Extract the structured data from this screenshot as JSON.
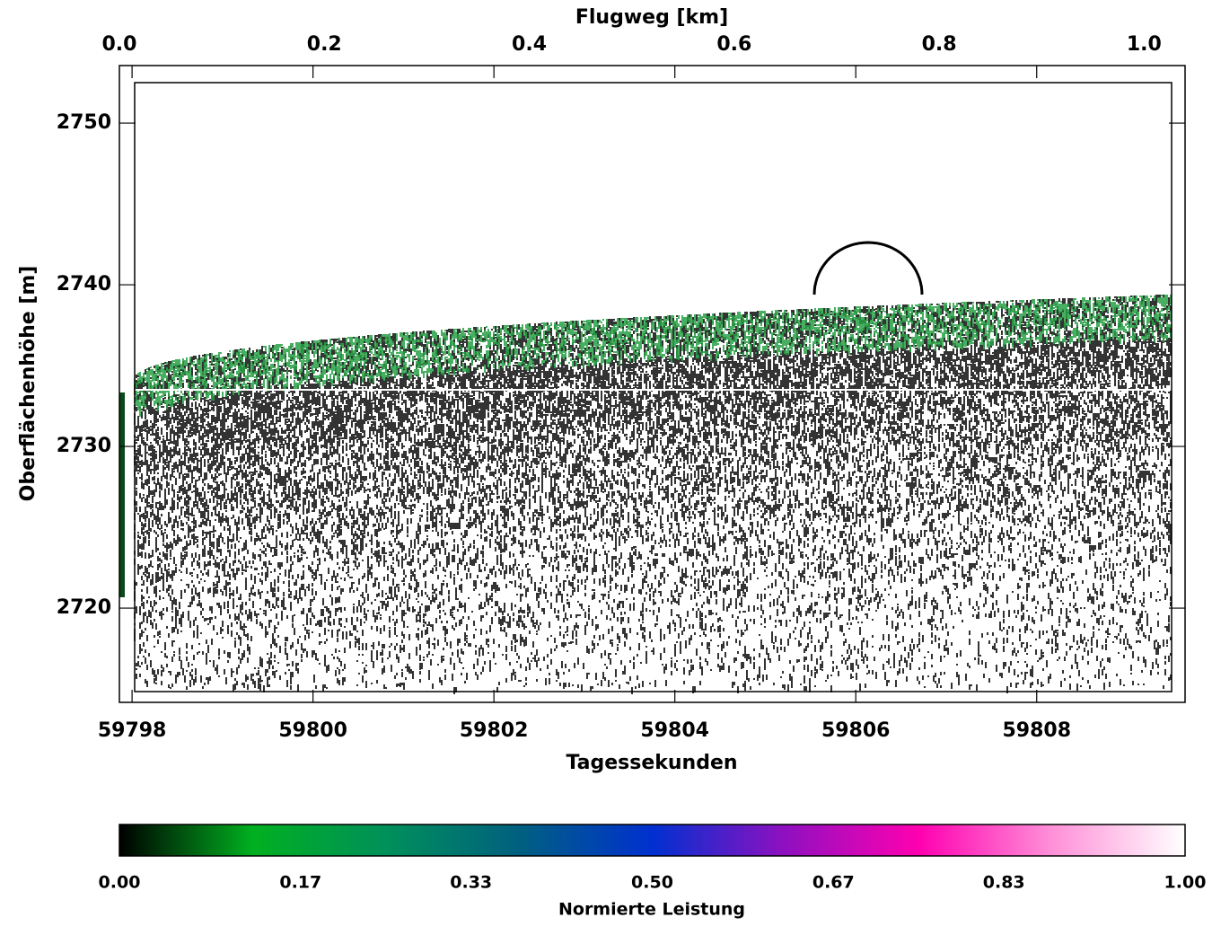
{
  "chart_data": {
    "type": "echogram",
    "x_label": "Tagessekunden",
    "x2_label": "Flugweg [km]",
    "y_label": "Oberflächenhöhe [m]",
    "xlim": [
      59797.86,
      59809.64
    ],
    "xticks": [
      59798,
      59800,
      59802,
      59804,
      59806,
      59808
    ],
    "x2lim": [
      0,
      1.04
    ],
    "x2ticks": [
      {
        "value": 0,
        "label": "0.0"
      },
      0.2,
      0.4,
      0.6,
      0.8,
      {
        "value": 1,
        "label": "1.0"
      }
    ],
    "ylim": [
      2714.17,
      2753.56
    ],
    "yticks": [
      2720,
      2730,
      2740,
      2750
    ],
    "colorbar": {
      "label": "Normierte Leistung",
      "lim": [
        0,
        1
      ],
      "ticks": [
        {
          "value": 0,
          "label": "0.00"
        },
        0.17,
        0.33,
        {
          "value": 0.5,
          "label": "0.50"
        },
        0.67,
        0.83,
        {
          "value": 1,
          "label": "1.00"
        }
      ],
      "colors": [
        "#000000",
        "#00b020",
        "#00905a",
        "#006080",
        "#0030d0",
        "#9010c0",
        "#ff00b0",
        "#ff90d8",
        "#ffffff"
      ]
    }
  }
}
